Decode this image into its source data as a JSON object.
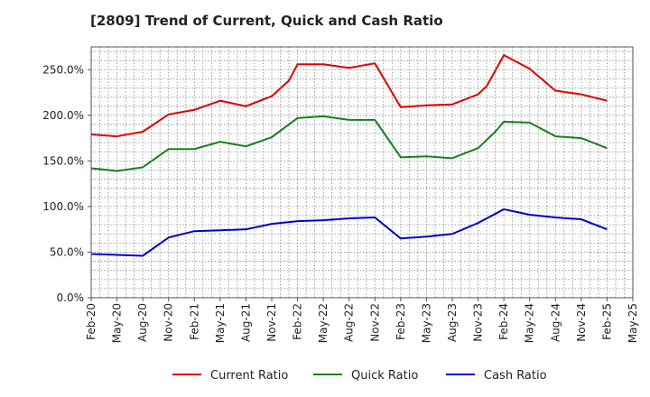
{
  "chart_data": {
    "type": "line",
    "title": "[2809]  Trend of Current, Quick and Cash Ratio",
    "xlabel": "",
    "ylabel": "",
    "ylim": [
      0,
      275
    ],
    "y_ticks": [
      "0.0%",
      "50.0%",
      "100.0%",
      "150.0%",
      "200.0%",
      "250.0%"
    ],
    "y_tick_values": [
      0,
      50,
      100,
      150,
      200,
      250
    ],
    "grid": true,
    "legend_position": "bottom",
    "categories": [
      "Feb-20",
      "May-20",
      "Aug-20",
      "Nov-20",
      "Feb-21",
      "May-21",
      "Aug-21",
      "Nov-21",
      "Feb-22",
      "May-22",
      "Aug-22",
      "Nov-22",
      "Feb-23",
      "May-23",
      "Aug-23",
      "Nov-23",
      "Feb-24",
      "May-24",
      "Aug-24",
      "Nov-24",
      "Feb-25",
      "May-25"
    ],
    "series": [
      {
        "name": "Current Ratio",
        "color": "#e00000",
        "x": [
          0,
          1,
          2,
          3,
          4,
          5,
          6,
          7,
          7.6667,
          8,
          9,
          10,
          11,
          12,
          13,
          14,
          15,
          15.3333,
          16,
          17,
          18,
          19,
          20
        ],
        "values": [
          179,
          177,
          182,
          201,
          206,
          216,
          210,
          221,
          238,
          256,
          256,
          252,
          257,
          209,
          211,
          212,
          223,
          232,
          266,
          251,
          227,
          223,
          216
        ]
      },
      {
        "name": "Quick Ratio",
        "color": "#1a7f1a",
        "x": [
          0,
          1,
          2,
          3,
          4,
          5,
          6,
          7,
          8,
          9,
          10,
          11,
          12,
          13,
          14,
          15,
          15.6667,
          16,
          17,
          18,
          19,
          20
        ],
        "values": [
          142,
          139,
          143,
          163,
          163,
          171,
          166,
          176,
          197,
          199,
          195,
          195,
          154,
          155,
          153,
          164,
          182,
          193,
          192,
          177,
          175,
          164
        ]
      },
      {
        "name": "Cash Ratio",
        "color": "#0000cc",
        "x": [
          0,
          1,
          2,
          3,
          4,
          5,
          6,
          7,
          8,
          9,
          10,
          11,
          12,
          13,
          14,
          15,
          16,
          17,
          18,
          19,
          20
        ],
        "values": [
          48,
          47,
          46,
          66,
          73,
          74,
          75,
          81,
          84,
          85,
          87,
          88,
          65,
          67,
          70,
          82,
          97,
          91,
          88,
          86,
          75
        ]
      }
    ]
  }
}
